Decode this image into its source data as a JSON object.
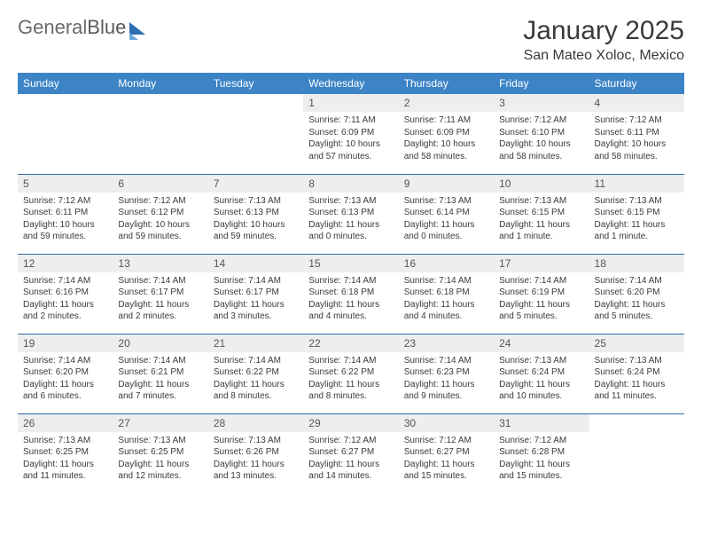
{
  "brand": {
    "part1": "General",
    "part2": "Blue"
  },
  "title": "January 2025",
  "location": "San Mateo Xoloc, Mexico",
  "colors": {
    "header_bg": "#3d84c6",
    "header_text": "#ffffff",
    "daynum_bg": "#eceeef",
    "row_border": "#2f6aa8",
    "text": "#3a3a3a"
  },
  "weekdays": [
    "Sunday",
    "Monday",
    "Tuesday",
    "Wednesday",
    "Thursday",
    "Friday",
    "Saturday"
  ],
  "weeks": [
    [
      {
        "day": "",
        "sunrise": "",
        "sunset": "",
        "day1": "",
        "day2": ""
      },
      {
        "day": "",
        "sunrise": "",
        "sunset": "",
        "day1": "",
        "day2": ""
      },
      {
        "day": "",
        "sunrise": "",
        "sunset": "",
        "day1": "",
        "day2": ""
      },
      {
        "day": "1",
        "sunrise": "Sunrise: 7:11 AM",
        "sunset": "Sunset: 6:09 PM",
        "day1": "Daylight: 10 hours",
        "day2": "and 57 minutes."
      },
      {
        "day": "2",
        "sunrise": "Sunrise: 7:11 AM",
        "sunset": "Sunset: 6:09 PM",
        "day1": "Daylight: 10 hours",
        "day2": "and 58 minutes."
      },
      {
        "day": "3",
        "sunrise": "Sunrise: 7:12 AM",
        "sunset": "Sunset: 6:10 PM",
        "day1": "Daylight: 10 hours",
        "day2": "and 58 minutes."
      },
      {
        "day": "4",
        "sunrise": "Sunrise: 7:12 AM",
        "sunset": "Sunset: 6:11 PM",
        "day1": "Daylight: 10 hours",
        "day2": "and 58 minutes."
      }
    ],
    [
      {
        "day": "5",
        "sunrise": "Sunrise: 7:12 AM",
        "sunset": "Sunset: 6:11 PM",
        "day1": "Daylight: 10 hours",
        "day2": "and 59 minutes."
      },
      {
        "day": "6",
        "sunrise": "Sunrise: 7:12 AM",
        "sunset": "Sunset: 6:12 PM",
        "day1": "Daylight: 10 hours",
        "day2": "and 59 minutes."
      },
      {
        "day": "7",
        "sunrise": "Sunrise: 7:13 AM",
        "sunset": "Sunset: 6:13 PM",
        "day1": "Daylight: 10 hours",
        "day2": "and 59 minutes."
      },
      {
        "day": "8",
        "sunrise": "Sunrise: 7:13 AM",
        "sunset": "Sunset: 6:13 PM",
        "day1": "Daylight: 11 hours",
        "day2": "and 0 minutes."
      },
      {
        "day": "9",
        "sunrise": "Sunrise: 7:13 AM",
        "sunset": "Sunset: 6:14 PM",
        "day1": "Daylight: 11 hours",
        "day2": "and 0 minutes."
      },
      {
        "day": "10",
        "sunrise": "Sunrise: 7:13 AM",
        "sunset": "Sunset: 6:15 PM",
        "day1": "Daylight: 11 hours",
        "day2": "and 1 minute."
      },
      {
        "day": "11",
        "sunrise": "Sunrise: 7:13 AM",
        "sunset": "Sunset: 6:15 PM",
        "day1": "Daylight: 11 hours",
        "day2": "and 1 minute."
      }
    ],
    [
      {
        "day": "12",
        "sunrise": "Sunrise: 7:14 AM",
        "sunset": "Sunset: 6:16 PM",
        "day1": "Daylight: 11 hours",
        "day2": "and 2 minutes."
      },
      {
        "day": "13",
        "sunrise": "Sunrise: 7:14 AM",
        "sunset": "Sunset: 6:17 PM",
        "day1": "Daylight: 11 hours",
        "day2": "and 2 minutes."
      },
      {
        "day": "14",
        "sunrise": "Sunrise: 7:14 AM",
        "sunset": "Sunset: 6:17 PM",
        "day1": "Daylight: 11 hours",
        "day2": "and 3 minutes."
      },
      {
        "day": "15",
        "sunrise": "Sunrise: 7:14 AM",
        "sunset": "Sunset: 6:18 PM",
        "day1": "Daylight: 11 hours",
        "day2": "and 4 minutes."
      },
      {
        "day": "16",
        "sunrise": "Sunrise: 7:14 AM",
        "sunset": "Sunset: 6:18 PM",
        "day1": "Daylight: 11 hours",
        "day2": "and 4 minutes."
      },
      {
        "day": "17",
        "sunrise": "Sunrise: 7:14 AM",
        "sunset": "Sunset: 6:19 PM",
        "day1": "Daylight: 11 hours",
        "day2": "and 5 minutes."
      },
      {
        "day": "18",
        "sunrise": "Sunrise: 7:14 AM",
        "sunset": "Sunset: 6:20 PM",
        "day1": "Daylight: 11 hours",
        "day2": "and 5 minutes."
      }
    ],
    [
      {
        "day": "19",
        "sunrise": "Sunrise: 7:14 AM",
        "sunset": "Sunset: 6:20 PM",
        "day1": "Daylight: 11 hours",
        "day2": "and 6 minutes."
      },
      {
        "day": "20",
        "sunrise": "Sunrise: 7:14 AM",
        "sunset": "Sunset: 6:21 PM",
        "day1": "Daylight: 11 hours",
        "day2": "and 7 minutes."
      },
      {
        "day": "21",
        "sunrise": "Sunrise: 7:14 AM",
        "sunset": "Sunset: 6:22 PM",
        "day1": "Daylight: 11 hours",
        "day2": "and 8 minutes."
      },
      {
        "day": "22",
        "sunrise": "Sunrise: 7:14 AM",
        "sunset": "Sunset: 6:22 PM",
        "day1": "Daylight: 11 hours",
        "day2": "and 8 minutes."
      },
      {
        "day": "23",
        "sunrise": "Sunrise: 7:14 AM",
        "sunset": "Sunset: 6:23 PM",
        "day1": "Daylight: 11 hours",
        "day2": "and 9 minutes."
      },
      {
        "day": "24",
        "sunrise": "Sunrise: 7:13 AM",
        "sunset": "Sunset: 6:24 PM",
        "day1": "Daylight: 11 hours",
        "day2": "and 10 minutes."
      },
      {
        "day": "25",
        "sunrise": "Sunrise: 7:13 AM",
        "sunset": "Sunset: 6:24 PM",
        "day1": "Daylight: 11 hours",
        "day2": "and 11 minutes."
      }
    ],
    [
      {
        "day": "26",
        "sunrise": "Sunrise: 7:13 AM",
        "sunset": "Sunset: 6:25 PM",
        "day1": "Daylight: 11 hours",
        "day2": "and 11 minutes."
      },
      {
        "day": "27",
        "sunrise": "Sunrise: 7:13 AM",
        "sunset": "Sunset: 6:25 PM",
        "day1": "Daylight: 11 hours",
        "day2": "and 12 minutes."
      },
      {
        "day": "28",
        "sunrise": "Sunrise: 7:13 AM",
        "sunset": "Sunset: 6:26 PM",
        "day1": "Daylight: 11 hours",
        "day2": "and 13 minutes."
      },
      {
        "day": "29",
        "sunrise": "Sunrise: 7:12 AM",
        "sunset": "Sunset: 6:27 PM",
        "day1": "Daylight: 11 hours",
        "day2": "and 14 minutes."
      },
      {
        "day": "30",
        "sunrise": "Sunrise: 7:12 AM",
        "sunset": "Sunset: 6:27 PM",
        "day1": "Daylight: 11 hours",
        "day2": "and 15 minutes."
      },
      {
        "day": "31",
        "sunrise": "Sunrise: 7:12 AM",
        "sunset": "Sunset: 6:28 PM",
        "day1": "Daylight: 11 hours",
        "day2": "and 15 minutes."
      },
      {
        "day": "",
        "sunrise": "",
        "sunset": "",
        "day1": "",
        "day2": ""
      }
    ]
  ]
}
